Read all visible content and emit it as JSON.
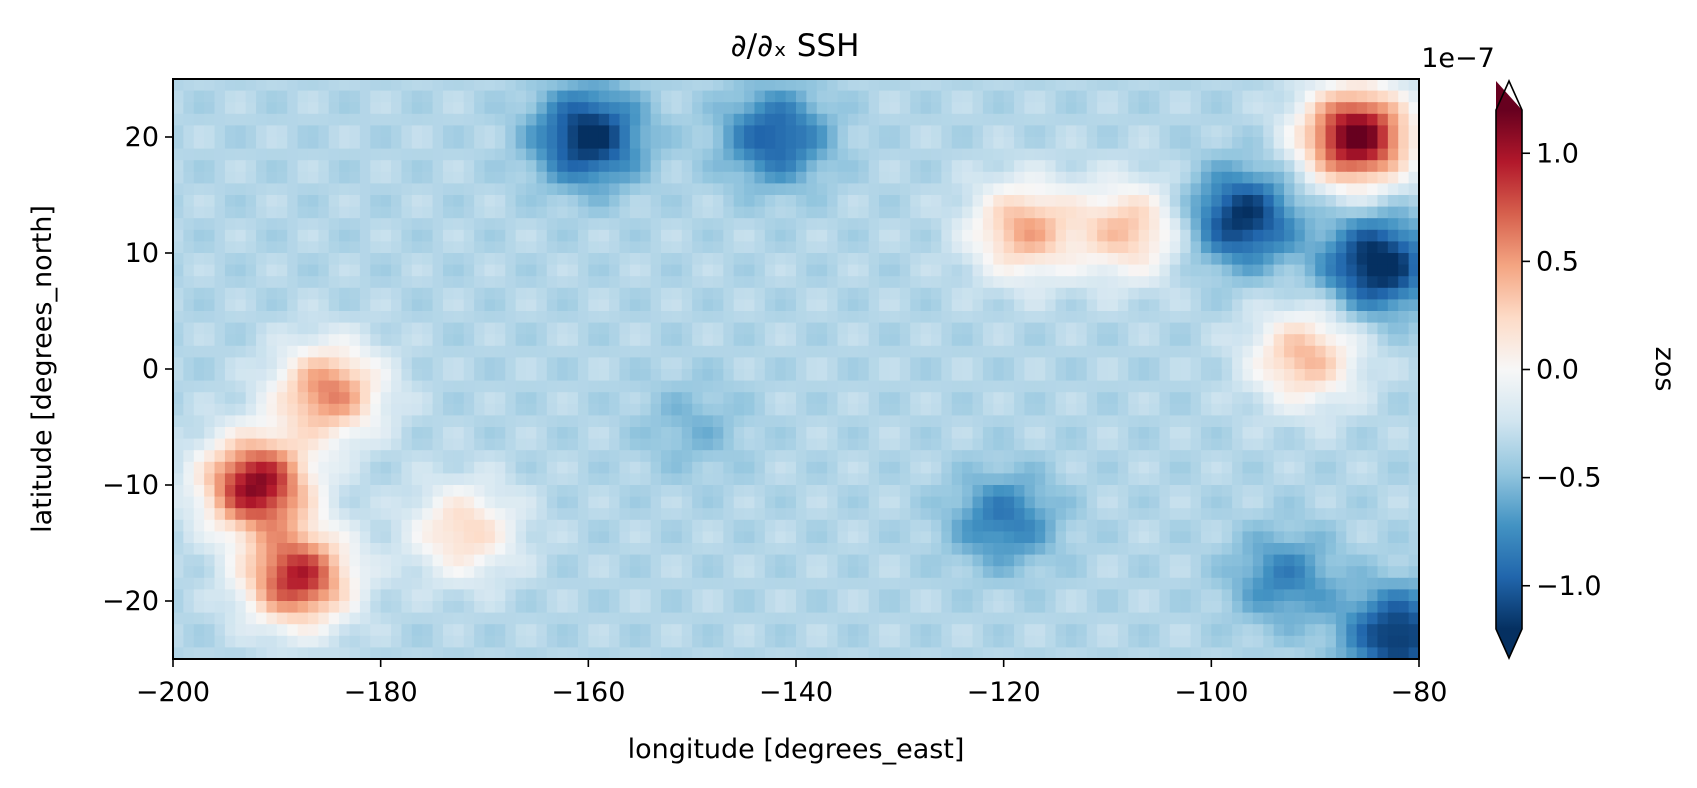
{
  "chart_data": {
    "type": "heatmap",
    "title": "∂/∂ₓ SSH",
    "xlabel": "longitude [degrees_east]",
    "ylabel": "latitude [degrees_north]",
    "xlim": [
      -200,
      -80
    ],
    "ylim": [
      -25,
      25
    ],
    "xticks": [
      -200,
      -180,
      -160,
      -140,
      -120,
      -100,
      -80
    ],
    "xtick_labels": [
      "−200",
      "−180",
      "−160",
      "−140",
      "−120",
      "−100",
      "−80"
    ],
    "yticks": [
      20,
      10,
      0,
      -10,
      -20
    ],
    "ytick_labels": [
      "20",
      "10",
      "0",
      "−10",
      "−20"
    ],
    "colorbar": {
      "label": "zos",
      "scale_label": "1e−7",
      "colormap": "RdBu_r",
      "vmin": -1.2,
      "vmax": 1.2,
      "extend": "both",
      "ticks": [
        1.0,
        0.5,
        0.0,
        -0.5,
        -1.0
      ],
      "tick_labels": [
        "1.0",
        "0.5",
        "0.0",
        "−0.5",
        "−1.0"
      ]
    },
    "grid_resolution_deg": 1,
    "field_features": [
      {
        "lon": -192,
        "lat": -10,
        "value": 1.1
      },
      {
        "lon": -188,
        "lat": -18,
        "value": 0.95
      },
      {
        "lon": -185,
        "lat": -2,
        "value": 0.6
      },
      {
        "lon": -160,
        "lat": 20,
        "value": -1.25
      },
      {
        "lon": -142,
        "lat": 20,
        "value": -1.0
      },
      {
        "lon": -118,
        "lat": 12,
        "value": 0.45
      },
      {
        "lon": -108,
        "lat": 12,
        "value": 0.35
      },
      {
        "lon": -97,
        "lat": 13,
        "value": -1.2
      },
      {
        "lon": -86,
        "lat": 20,
        "value": 1.25
      },
      {
        "lon": -84,
        "lat": 9,
        "value": -1.3
      },
      {
        "lon": -91,
        "lat": 1,
        "value": 0.4
      },
      {
        "lon": -120,
        "lat": -13,
        "value": -0.85
      },
      {
        "lon": -93,
        "lat": -18,
        "value": -0.8
      },
      {
        "lon": -150,
        "lat": -5,
        "value": -0.55
      },
      {
        "lon": -82,
        "lat": -23,
        "value": -1.2
      },
      {
        "lon": -172,
        "lat": -14,
        "value": 0.25
      }
    ]
  }
}
